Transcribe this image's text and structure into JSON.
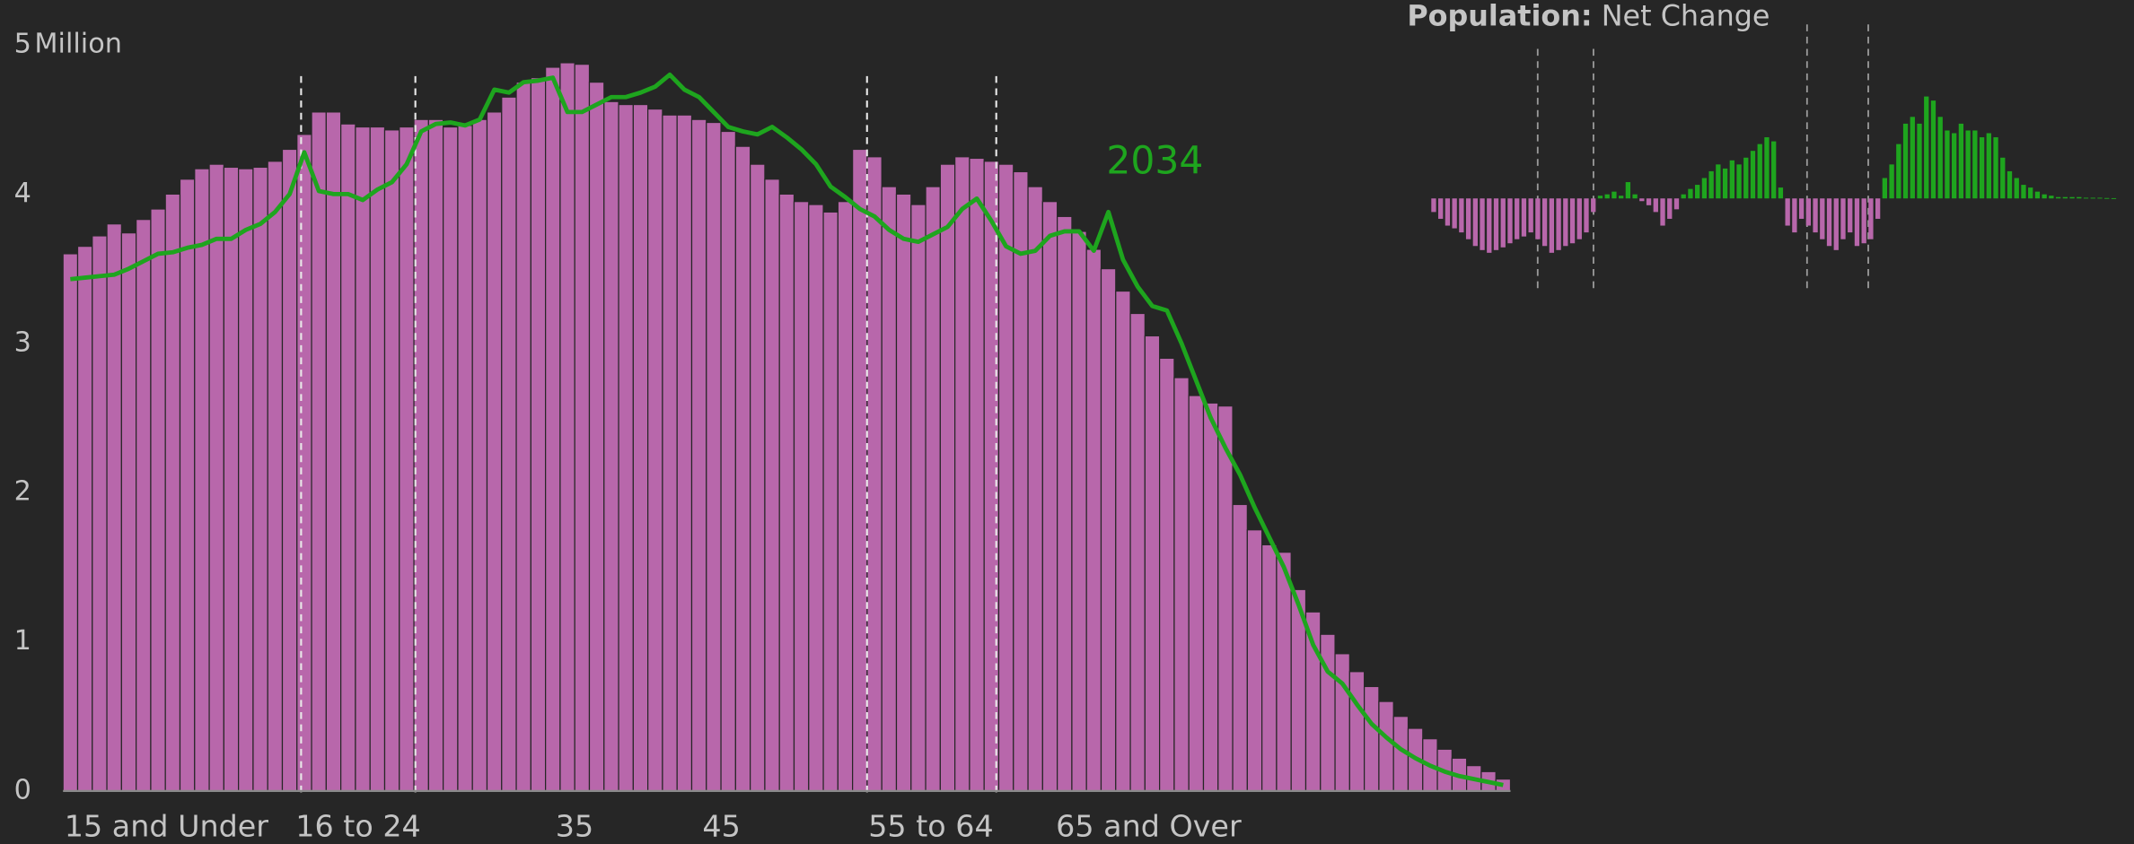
{
  "chart_data": [
    {
      "type": "bar",
      "y_unit": "Million",
      "yticks": [
        0,
        1,
        2,
        3,
        4,
        {
          "value": 5,
          "label": "5"
        }
      ],
      "ylim": [
        0,
        5
      ],
      "xlabels": [
        "15 and Under",
        "16 to 24",
        "35",
        "45",
        "55 to 64",
        "65 and Over"
      ],
      "series": [
        {
          "color": "#b867ab",
          "values": [
            3.6,
            3.65,
            3.72,
            3.8,
            3.74,
            3.83,
            3.9,
            4.0,
            4.1,
            4.17,
            4.2,
            4.18,
            4.17,
            4.18,
            4.22,
            4.3,
            4.4,
            4.55,
            4.55,
            4.47,
            4.45,
            4.45,
            4.43,
            4.45,
            4.5,
            4.5,
            4.45,
            4.46,
            4.5,
            4.55,
            4.65,
            4.75,
            4.78,
            4.85,
            4.88,
            4.87,
            4.75,
            4.62,
            4.6,
            4.6,
            4.57,
            4.53,
            4.53,
            4.5,
            4.48,
            4.42,
            4.32,
            4.2,
            4.1,
            4.0,
            3.95,
            3.93,
            3.88,
            3.95,
            4.3,
            4.25,
            4.05,
            4.0,
            3.93,
            4.05,
            4.2,
            4.25,
            4.24,
            4.22,
            4.2,
            4.15,
            4.05,
            3.95,
            3.85,
            3.75,
            3.63,
            3.5,
            3.35,
            3.2,
            3.05,
            2.9,
            2.77,
            2.65,
            2.6,
            2.58,
            1.92,
            1.75,
            1.65,
            1.6,
            1.35,
            1.2,
            1.05,
            0.92,
            0.8,
            0.7,
            0.6,
            0.5,
            0.42,
            0.35,
            0.28,
            0.22,
            0.17,
            0.13,
            0.08
          ]
        },
        {
          "type": "line",
          "name": "2034",
          "color": "#1ea51e",
          "values": [
            3.43,
            3.44,
            3.45,
            3.46,
            3.5,
            3.55,
            3.6,
            3.61,
            3.64,
            3.66,
            3.7,
            3.7,
            3.76,
            3.8,
            3.88,
            4.0,
            4.28,
            4.02,
            4.0,
            4.0,
            3.96,
            4.03,
            4.08,
            4.2,
            4.42,
            4.47,
            4.48,
            4.46,
            4.5,
            4.7,
            4.68,
            4.75,
            4.76,
            4.78,
            4.55,
            4.55,
            4.6,
            4.65,
            4.65,
            4.68,
            4.72,
            4.8,
            4.7,
            4.65,
            4.55,
            4.45,
            4.42,
            4.4,
            4.45,
            4.38,
            4.3,
            4.2,
            4.05,
            3.98,
            3.9,
            3.85,
            3.76,
            3.7,
            3.68,
            3.73,
            3.78,
            3.9,
            3.97,
            3.82,
            3.65,
            3.6,
            3.62,
            3.72,
            3.75,
            3.75,
            3.62,
            3.88,
            3.56,
            3.38,
            3.25,
            3.22,
            3.0,
            2.75,
            2.5,
            2.3,
            2.12,
            1.9,
            1.7,
            1.5,
            1.25,
            0.98,
            0.8,
            0.72,
            0.58,
            0.45,
            0.36,
            0.28,
            0.22,
            0.17,
            0.13,
            0.1,
            0.08,
            0.06,
            0.04
          ]
        }
      ]
    },
    {
      "type": "bar",
      "title_bold": "Population:",
      "title": "Net Change",
      "positive_color": "#1ea51e",
      "negative_color": "#b867ab",
      "values": [
        -0.1,
        -0.15,
        -0.2,
        -0.22,
        -0.25,
        -0.3,
        -0.35,
        -0.38,
        -0.4,
        -0.38,
        -0.36,
        -0.33,
        -0.3,
        -0.28,
        -0.25,
        -0.3,
        -0.35,
        -0.4,
        -0.38,
        -0.35,
        -0.33,
        -0.3,
        -0.25,
        -0.1,
        0.02,
        0.03,
        0.05,
        0.02,
        0.12,
        0.03,
        -0.02,
        -0.05,
        -0.1,
        -0.2,
        -0.15,
        -0.08,
        0.03,
        0.07,
        0.1,
        0.15,
        0.2,
        0.25,
        0.22,
        0.28,
        0.25,
        0.3,
        0.35,
        0.4,
        0.45,
        0.42,
        0.08,
        -0.2,
        -0.25,
        -0.15,
        -0.2,
        -0.25,
        -0.3,
        -0.35,
        -0.38,
        -0.3,
        -0.25,
        -0.35,
        -0.33,
        -0.3,
        -0.15,
        0.15,
        0.25,
        0.4,
        0.55,
        0.6,
        0.55,
        0.75,
        0.72,
        0.6,
        0.5,
        0.48,
        0.55,
        0.5,
        0.5,
        0.45,
        0.48,
        0.45,
        0.3,
        0.2,
        0.15,
        0.1,
        0.08,
        0.05,
        0.03,
        0.02,
        0.01,
        0.01,
        0.01,
        0.01,
        0.005,
        0.005,
        0.005,
        0.003,
        0.002
      ]
    }
  ]
}
